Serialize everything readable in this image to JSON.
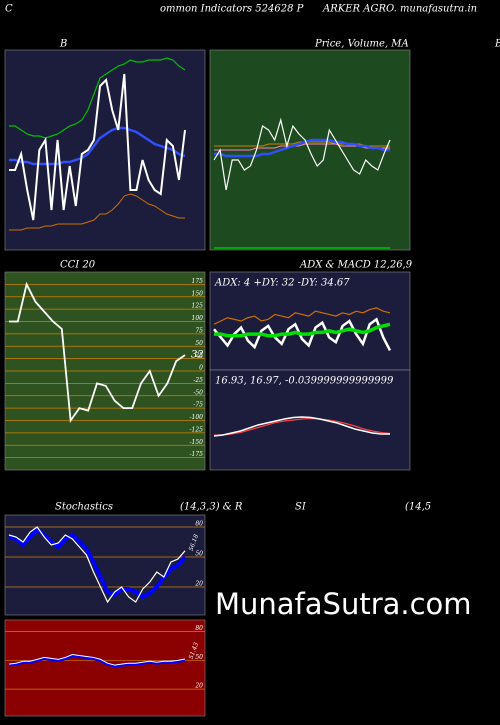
{
  "header": [
    "C",
    "ommon  Indicators 524628  P",
    "ARKER AGRO. munafasutra.in",
    "B"
  ],
  "watermark": "MunafaSutra.com",
  "chart_data": [
    {
      "type": "line",
      "title": "B",
      "ylim": [
        0,
        100
      ],
      "series": [
        {
          "color": "#00c000",
          "values": [
            62,
            62,
            60,
            58,
            57,
            57,
            56,
            57,
            58,
            60,
            62,
            63,
            65,
            70,
            78,
            86,
            88,
            90,
            92,
            93,
            95,
            94,
            94,
            95,
            95,
            95,
            96,
            95,
            92,
            90
          ]
        },
        {
          "color": "#3050ff",
          "values": [
            45,
            45,
            44,
            44,
            43,
            43,
            43,
            43,
            43,
            44,
            44,
            45,
            46,
            48,
            52,
            56,
            58,
            60,
            61,
            61,
            60,
            59,
            57,
            55,
            53,
            52,
            51,
            50,
            48,
            47
          ]
        },
        {
          "color": "#ffffff",
          "values": [
            40,
            40,
            48,
            30,
            15,
            50,
            55,
            20,
            55,
            20,
            42,
            22,
            48,
            50,
            55,
            82,
            85,
            70,
            60,
            88,
            30,
            30,
            45,
            35,
            30,
            28,
            55,
            52,
            35,
            60
          ]
        },
        {
          "color": "#d07000",
          "values": [
            10,
            10,
            10,
            11,
            11,
            11,
            12,
            12,
            13,
            13,
            13,
            13,
            13,
            14,
            15,
            18,
            18,
            20,
            23,
            27,
            28,
            27,
            25,
            23,
            22,
            20,
            18,
            17,
            16,
            16
          ]
        }
      ]
    },
    {
      "type": "line",
      "title": "Price, Volume, MA",
      "ylim": [
        0,
        100
      ],
      "series": [
        {
          "color": "#d08000",
          "values": [
            52,
            52,
            52,
            52,
            52,
            52,
            52,
            52,
            52,
            53,
            53,
            53,
            53,
            53,
            54,
            54,
            54,
            54,
            54,
            54,
            53,
            53,
            53,
            53,
            53,
            52,
            52,
            52,
            52,
            52
          ]
        },
        {
          "color": "#ff80c0",
          "values": [
            50,
            50,
            50,
            50,
            50,
            50,
            50,
            51,
            51,
            51,
            51,
            52,
            52,
            52,
            52,
            53,
            53,
            53,
            53,
            53,
            53,
            52,
            52,
            52,
            52,
            51,
            51,
            51,
            51,
            51
          ]
        },
        {
          "color": "#3050ff",
          "values": [
            48,
            48,
            47,
            47,
            47,
            47,
            47,
            47,
            48,
            48,
            49,
            50,
            51,
            52,
            53,
            54,
            55,
            55,
            55,
            55,
            54,
            54,
            53,
            53,
            52,
            52,
            51,
            51,
            50,
            50
          ]
        },
        {
          "color": "#ffffff",
          "values": [
            45,
            50,
            30,
            45,
            45,
            40,
            42,
            50,
            62,
            60,
            55,
            65,
            52,
            62,
            58,
            55,
            48,
            42,
            45,
            60,
            55,
            50,
            45,
            40,
            38,
            45,
            42,
            40,
            48,
            55
          ]
        },
        {
          "color": "#00c000",
          "values": [
            1,
            1,
            1,
            1,
            1,
            1,
            1,
            1,
            1,
            1,
            1,
            1,
            1,
            1,
            1,
            1,
            1,
            1,
            1,
            1,
            1,
            1,
            1,
            1,
            1,
            1,
            1,
            1,
            1,
            1
          ]
        }
      ]
    },
    {
      "type": "line",
      "title": "CCI 20",
      "ylim": [
        -200,
        200
      ],
      "grid": true,
      "yticks": [
        175,
        150,
        125,
        100,
        75,
        50,
        25,
        0,
        -25,
        -50,
        -75,
        -100,
        -125,
        -150,
        -175
      ],
      "series": [
        {
          "color": "#ffffff",
          "values": [
            100,
            100,
            175,
            140,
            120,
            100,
            85,
            -100,
            -75,
            -80,
            -25,
            -30,
            -60,
            -75,
            -75,
            -25,
            0,
            -50,
            -25,
            20,
            32
          ]
        }
      ]
    },
    {
      "type": "line",
      "title": "ADX  & MACD 12,26,9",
      "info": "ADX: 4  +DY: 32  -DY: 34.67",
      "ylim": [
        0,
        60
      ],
      "series": [
        {
          "color": "#d07000",
          "values": [
            28,
            30,
            32,
            31,
            30,
            32,
            33,
            30,
            31,
            34,
            33,
            32,
            35,
            34,
            33,
            36,
            35,
            34,
            33,
            35,
            34,
            36,
            35,
            37,
            38,
            36,
            35
          ]
        },
        {
          "color": "#ffffff",
          "values": [
            25,
            20,
            15,
            22,
            26,
            18,
            14,
            24,
            27,
            20,
            16,
            25,
            28,
            19,
            15,
            26,
            29,
            20,
            17,
            27,
            30,
            22,
            16,
            28,
            31,
            20,
            12
          ]
        },
        {
          "color": "#00e000",
          "values": [
            22,
            22,
            21,
            21,
            21,
            22,
            22,
            22,
            21,
            21,
            22,
            22,
            23,
            22,
            22,
            23,
            23,
            24,
            23,
            24,
            25,
            24,
            23,
            24,
            26,
            27,
            28
          ]
        }
      ]
    },
    {
      "type": "line",
      "info": "16.93,  16.97,  -0.039999999999999",
      "ylim": [
        -1,
        1
      ],
      "series": [
        {
          "color": "#ff4040",
          "values": [
            -0.3,
            -0.3,
            -0.28,
            -0.25,
            -0.2,
            -0.15,
            -0.1,
            -0.05,
            -0.02,
            0,
            0.02,
            0.03,
            0.02,
            0,
            -0.03,
            -0.07,
            -0.12,
            -0.18,
            -0.22,
            -0.25,
            -0.27
          ]
        },
        {
          "color": "#ffffff",
          "values": [
            -0.32,
            -0.3,
            -0.26,
            -0.22,
            -0.16,
            -0.1,
            -0.06,
            -0.02,
            0.02,
            0.05,
            0.06,
            0.05,
            0.02,
            -0.02,
            -0.06,
            -0.12,
            -0.18,
            -0.22,
            -0.26,
            -0.28,
            -0.28
          ]
        }
      ]
    },
    {
      "type": "line",
      "title_parts": [
        "Stochastics",
        "(14,3,3) & R",
        "SI",
        "(14,5"
      ],
      "ylim": [
        -8,
        92
      ],
      "grid": true,
      "yticks": [
        80,
        50,
        20
      ],
      "series": [
        {
          "color": "#0000ff",
          "values": [
            70,
            68,
            62,
            70,
            78,
            72,
            65,
            60,
            68,
            72,
            65,
            58,
            45,
            30,
            15,
            12,
            18,
            18,
            15,
            10,
            14,
            20,
            30,
            38,
            42,
            50
          ]
        },
        {
          "color": "#ffffff",
          "values": [
            72,
            70,
            65,
            75,
            80,
            70,
            62,
            64,
            72,
            68,
            60,
            52,
            35,
            20,
            5,
            15,
            20,
            10,
            5,
            18,
            25,
            35,
            30,
            45,
            48,
            56.18
          ]
        }
      ]
    },
    {
      "type": "line",
      "ylim": [
        -8,
        92
      ],
      "grid": true,
      "yticks": [
        80,
        50,
        20
      ],
      "series": [
        {
          "color": "#0000ff",
          "values": [
            45,
            46,
            48,
            48,
            50,
            52,
            51,
            50,
            52,
            55,
            54,
            53,
            52,
            50,
            46,
            44,
            45,
            46,
            46,
            47,
            48,
            47,
            48,
            48,
            49,
            50
          ]
        },
        {
          "color": "#ffffff",
          "values": [
            46,
            47,
            49,
            49,
            51,
            53,
            52,
            51,
            53,
            56,
            55,
            54,
            53,
            51,
            47,
            45,
            46,
            47,
            47,
            48,
            49,
            48,
            49,
            49,
            50,
            51.43
          ]
        }
      ]
    }
  ]
}
